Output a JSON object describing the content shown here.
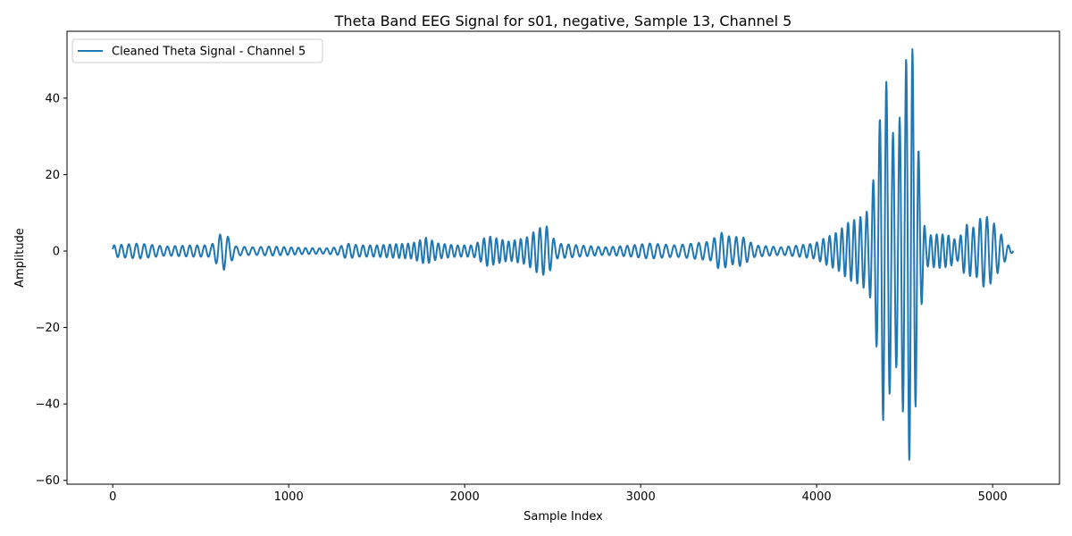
{
  "chart_data": {
    "type": "line",
    "title": "Theta Band EEG Signal for s01, negative, Sample 13, Channel 5",
    "xlabel": "Sample Index",
    "ylabel": "Amplitude",
    "xlim": [
      -260,
      5380
    ],
    "ylim": [
      -61,
      57.5
    ],
    "xticks": [
      0,
      1000,
      2000,
      3000,
      4000,
      5000
    ],
    "xtick_labels": [
      "0",
      "1000",
      "2000",
      "3000",
      "4000",
      "5000"
    ],
    "yticks": [
      -60,
      -40,
      -20,
      0,
      20,
      40
    ],
    "ytick_labels": [
      "−60",
      "−40",
      "−20",
      "0",
      "20",
      "40"
    ],
    "grid": false,
    "legend_position": "top-left",
    "series": [
      {
        "name": "Cleaned Theta Signal - Channel 5",
        "color": "#1f77b4",
        "x_start": 0,
        "x_end": 5120,
        "cycle_samples": 40,
        "peak_envelope": [
          [
            0,
            1.5
          ],
          [
            150,
            2.0
          ],
          [
            300,
            1.2
          ],
          [
            450,
            1.5
          ],
          [
            560,
            1.5
          ],
          [
            600,
            4.0
          ],
          [
            630,
            5.0
          ],
          [
            660,
            3.5
          ],
          [
            700,
            1.2
          ],
          [
            800,
            1.0
          ],
          [
            900,
            1.2
          ],
          [
            1000,
            1.0
          ],
          [
            1100,
            0.8
          ],
          [
            1200,
            0.7
          ],
          [
            1280,
            1.0
          ],
          [
            1330,
            2.0
          ],
          [
            1400,
            1.5
          ],
          [
            1500,
            1.5
          ],
          [
            1600,
            1.8
          ],
          [
            1700,
            2.0
          ],
          [
            1780,
            3.5
          ],
          [
            1850,
            2.0
          ],
          [
            1950,
            1.5
          ],
          [
            2050,
            1.5
          ],
          [
            2130,
            4.0
          ],
          [
            2250,
            2.5
          ],
          [
            2350,
            3.5
          ],
          [
            2420,
            6.0
          ],
          [
            2470,
            6.5
          ],
          [
            2520,
            2.0
          ],
          [
            2650,
            1.5
          ],
          [
            2800,
            1.0
          ],
          [
            2950,
            1.5
          ],
          [
            3050,
            2.0
          ],
          [
            3200,
            1.5
          ],
          [
            3300,
            2.0
          ],
          [
            3400,
            2.5
          ],
          [
            3450,
            5.0
          ],
          [
            3520,
            3.5
          ],
          [
            3570,
            4.0
          ],
          [
            3650,
            1.5
          ],
          [
            3800,
            1.0
          ],
          [
            3900,
            1.5
          ],
          [
            3990,
            2.0
          ],
          [
            4050,
            3.5
          ],
          [
            4120,
            5.0
          ],
          [
            4180,
            7.5
          ],
          [
            4250,
            9.0
          ],
          [
            4300,
            11.0
          ],
          [
            4340,
            25.0
          ],
          [
            4380,
            45.5
          ],
          [
            4400,
            44.0
          ],
          [
            4430,
            31.0
          ],
          [
            4460,
            30.5
          ],
          [
            4490,
            42.0
          ],
          [
            4520,
            55.5
          ],
          [
            4545,
            53.0
          ],
          [
            4570,
            35.0
          ],
          [
            4590,
            17.0
          ],
          [
            4620,
            4.0
          ],
          [
            4700,
            4.5
          ],
          [
            4760,
            4.0
          ],
          [
            4800,
            2.5
          ],
          [
            4850,
            7.0
          ],
          [
            4900,
            6.0
          ],
          [
            4940,
            9.5
          ],
          [
            4990,
            8.5
          ],
          [
            5040,
            5.0
          ],
          [
            5080,
            2.0
          ],
          [
            5120,
            0.0
          ]
        ]
      }
    ]
  }
}
